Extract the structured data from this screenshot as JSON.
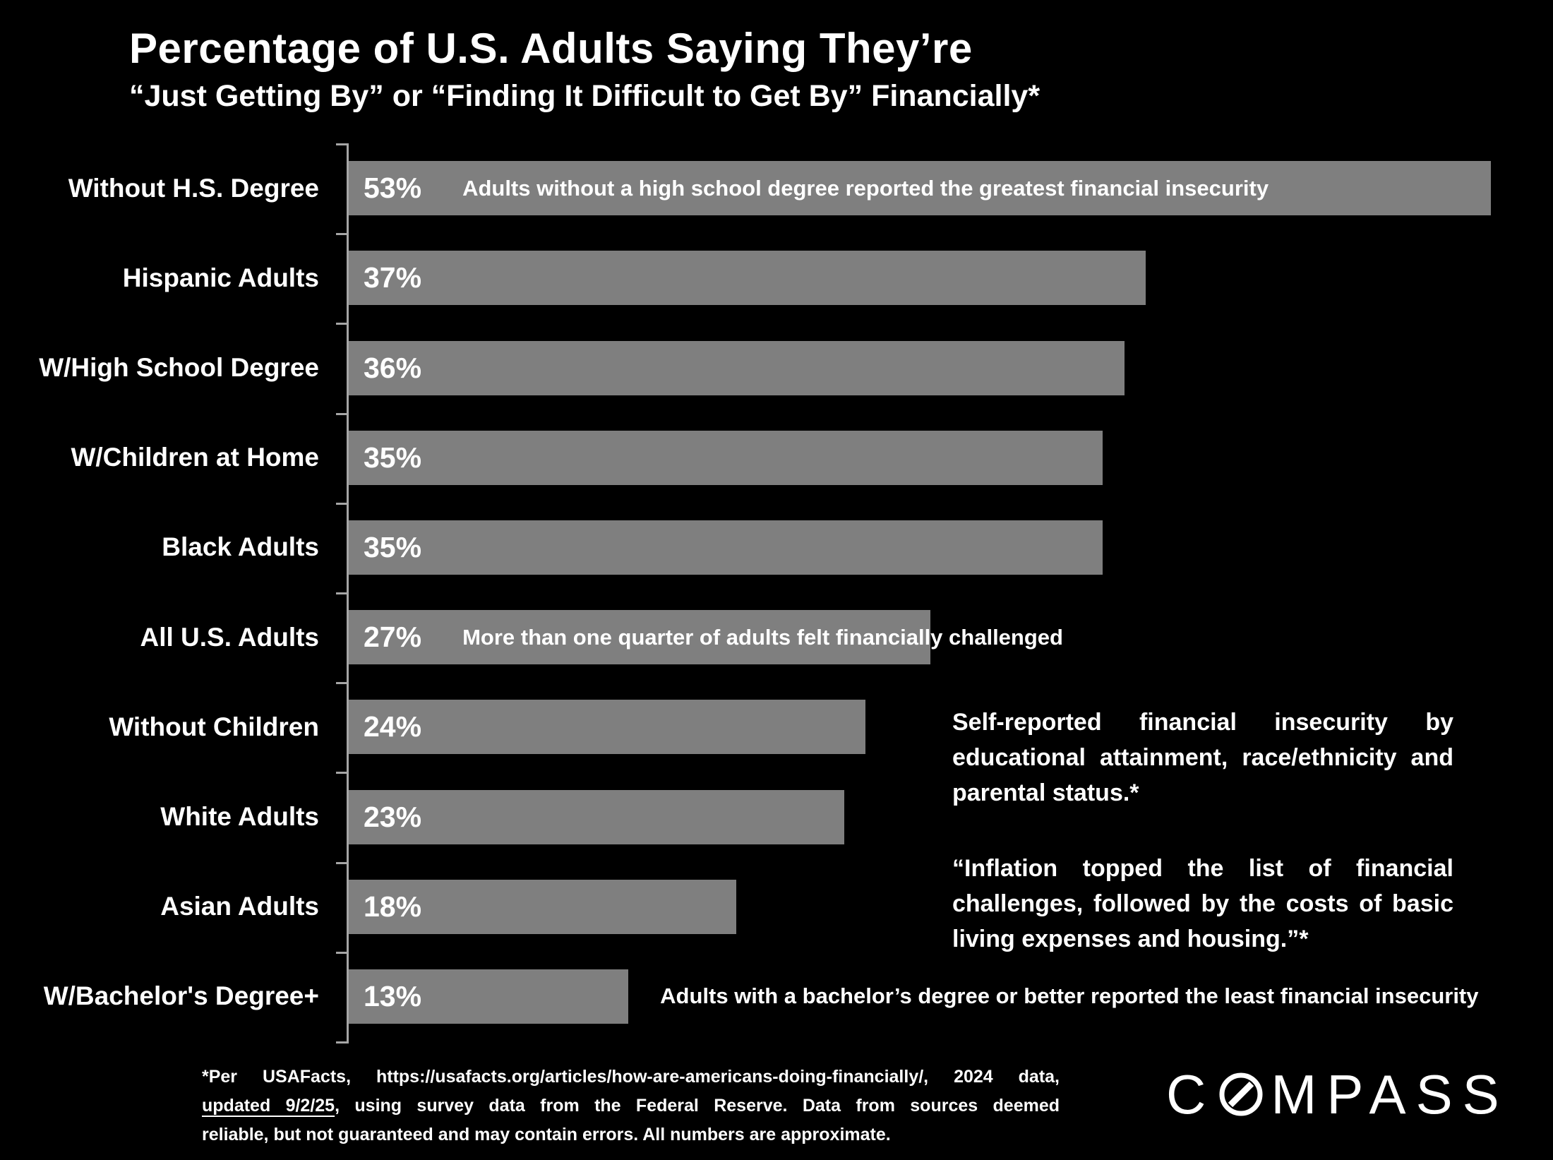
{
  "header": {
    "title": "Percentage of U.S. Adults Saying They’re",
    "subtitle": "“Just Getting By” or “Finding It Difficult to Get By” Financially*"
  },
  "chart_data": {
    "type": "bar",
    "orientation": "horizontal",
    "title": "Percentage of U.S. Adults Saying They’re “Just Getting By” or “Finding It Difficult to Get By” Financially*",
    "categories": [
      "Without H.S. Degree",
      "Hispanic Adults",
      "W/High School Degree",
      "W/Children at Home",
      "Black Adults",
      "All U.S. Adults",
      "Without Children",
      "White Adults",
      "Asian Adults",
      "W/Bachelor's Degree+"
    ],
    "values": [
      53,
      37,
      36,
      35,
      35,
      27,
      24,
      23,
      18,
      13
    ],
    "value_labels": [
      "53%",
      "37%",
      "36%",
      "35%",
      "35%",
      "27%",
      "24%",
      "23%",
      "18%",
      "13%"
    ],
    "value_suffix": "%",
    "xlabel": "",
    "ylabel": "",
    "xlim": [
      0,
      53
    ],
    "grid": false,
    "legend": false,
    "bar_color": "#7f7f7f",
    "axis_color": "#a6a6a6",
    "value_label_color": "#ffffff",
    "annotations": [
      {
        "category_index": 0,
        "text": "Adults without a high school degree reported the greatest financial insecurity",
        "placement": "inside-bar"
      },
      {
        "category_index": 5,
        "text": "More than one quarter of adults felt financially challenged",
        "placement": "inside-bar"
      },
      {
        "category_index": 9,
        "text": "Adults with a bachelor’s degree or better reported the least financial insecurity",
        "placement": "right-of-bar"
      }
    ]
  },
  "side_notes": {
    "note1": "Self-reported financial insecurity by educational attainment, race/ethnicity and parental status.*",
    "note2": "“Inflation topped the list of financial challenges, followed by the costs of basic living expenses and housing.”*"
  },
  "footnote": {
    "line1": "*Per USAFacts, https://usafacts.org/articles/how-are-americans-doing-financially/, 2024 data,",
    "line2_underlined": "updated 9/2/25",
    "line2_rest": ", using survey data from the Federal Reserve. Data from sources deemed",
    "line3": "reliable, but not guaranteed and may contain errors. All numbers are approximate."
  },
  "logo": {
    "name": "COMPASS",
    "prefix": "C",
    "suffix": "MPASS"
  }
}
